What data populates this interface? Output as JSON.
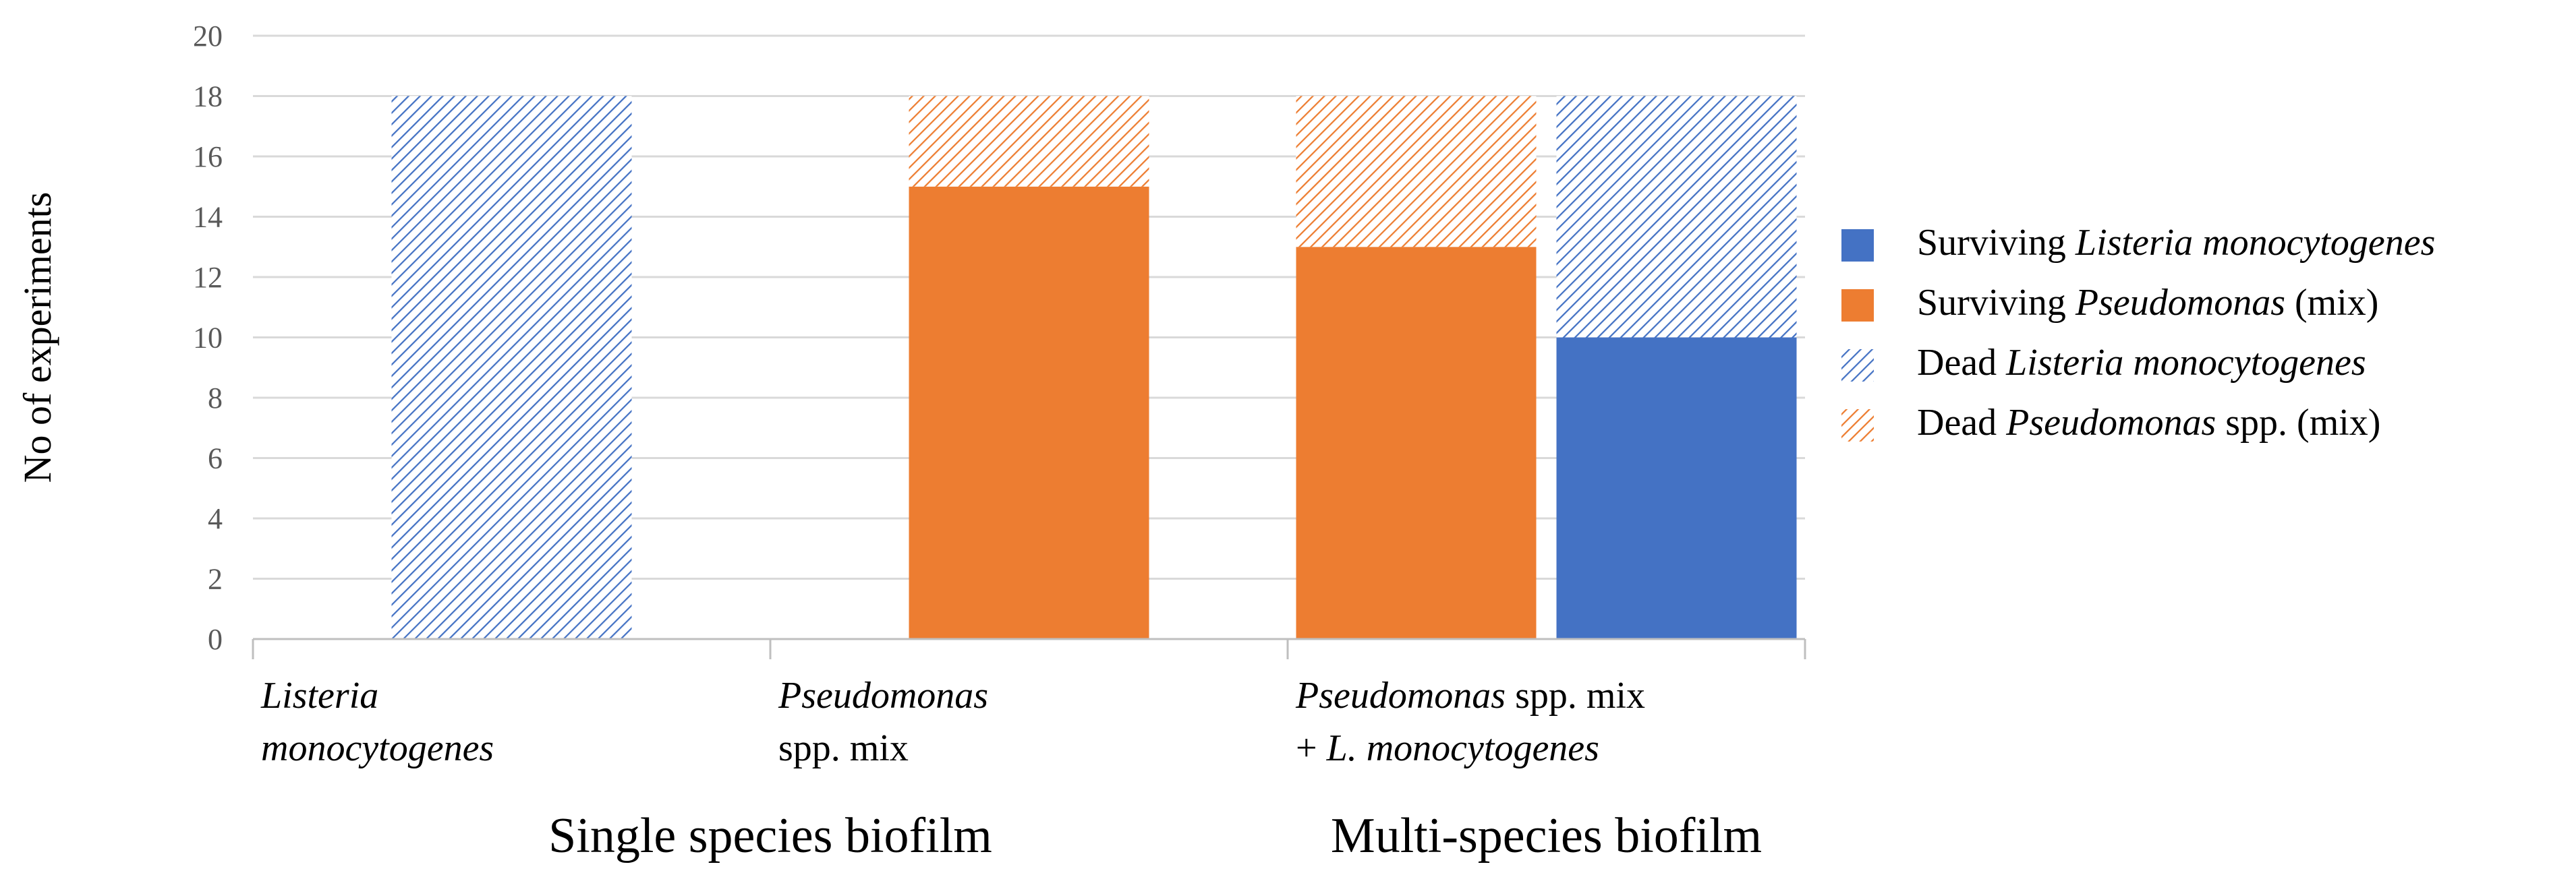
{
  "chart_data": {
    "type": "bar",
    "stacked": true,
    "ylabel": "No of experiments",
    "ylim": [
      0,
      20
    ],
    "ytick_step": 2,
    "grid": true,
    "legend_position": "right",
    "colors": {
      "listeria": "#4472C4",
      "pseudomonas": "#ED7D31",
      "gridline": "#D9D9D9",
      "axis": "#BFBFBF",
      "tick_text": "#595959"
    },
    "legend": [
      {
        "id": "surv_lm",
        "prefix": "Surviving ",
        "italic": "Listeria monocytogenes",
        "suffix": "",
        "pattern": "solid",
        "color": "#4472C4"
      },
      {
        "id": "surv_ps",
        "prefix": "Surviving ",
        "italic": "Pseudomonas",
        "suffix": " (mix)",
        "pattern": "solid",
        "color": "#ED7D31"
      },
      {
        "id": "dead_lm",
        "prefix": "Dead ",
        "italic": "Listeria monocytogenes",
        "suffix": "",
        "pattern": "hatch",
        "color": "#4472C4"
      },
      {
        "id": "dead_ps",
        "prefix": "Dead ",
        "italic": "Pseudomonas",
        "suffix": " spp. (mix)",
        "pattern": "hatch",
        "color": "#ED7D31"
      }
    ],
    "bars": [
      {
        "category_index": 0,
        "slot": "center",
        "segments": [
          {
            "series": "surv_lm",
            "value": 0
          },
          {
            "series": "dead_lm",
            "value": 18
          }
        ]
      },
      {
        "category_index": 1,
        "slot": "center",
        "segments": [
          {
            "series": "surv_ps",
            "value": 15
          },
          {
            "series": "dead_ps",
            "value": 3
          }
        ]
      },
      {
        "category_index": 2,
        "slot": "left",
        "segments": [
          {
            "series": "surv_ps",
            "value": 13
          },
          {
            "series": "dead_ps",
            "value": 5
          }
        ]
      },
      {
        "category_index": 2,
        "slot": "right",
        "segments": [
          {
            "series": "surv_lm",
            "value": 10
          },
          {
            "series": "dead_lm",
            "value": 8
          }
        ]
      }
    ],
    "categories": [
      {
        "lines": [
          [
            {
              "text": "Listeria",
              "italic": true
            }
          ],
          [
            {
              "text": "monocytogenes",
              "italic": true
            }
          ]
        ]
      },
      {
        "lines": [
          [
            {
              "text": "Pseudomonas",
              "italic": true
            }
          ],
          [
            {
              "text": "spp. mix",
              "italic": false
            }
          ]
        ]
      },
      {
        "lines": [
          [
            {
              "text": "Pseudomonas",
              "italic": true
            },
            {
              "text": " spp. mix",
              "italic": false
            }
          ],
          [
            {
              "text": "+ ",
              "italic": false
            },
            {
              "text": "L. monocytogenes",
              "italic": true
            }
          ]
        ]
      }
    ],
    "groups": [
      {
        "label": "Single species biofilm",
        "categories": [
          0,
          1
        ]
      },
      {
        "label": "Multi-species biofilm",
        "categories": [
          2
        ]
      }
    ]
  }
}
